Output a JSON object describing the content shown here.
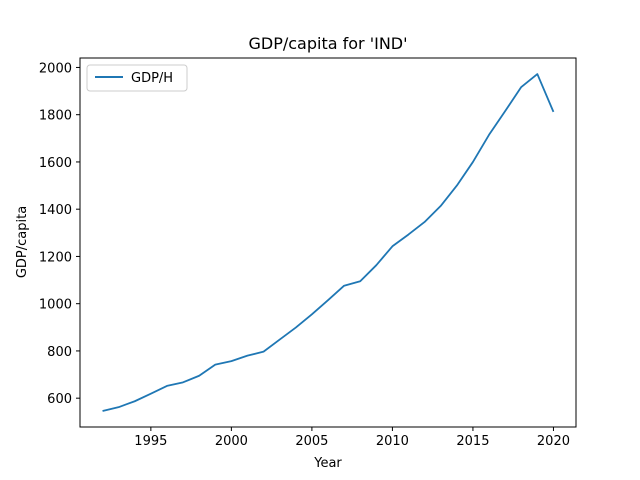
{
  "chart_data": {
    "type": "line",
    "title": "GDP/capita for 'IND'",
    "xlabel": "Year",
    "ylabel": "GDP/capita",
    "xlim": [
      1990.6,
      2021.4
    ],
    "ylim": [
      478,
      2040
    ],
    "xticks": [
      1995,
      2000,
      2005,
      2010,
      2015,
      2020
    ],
    "yticks": [
      600,
      800,
      1000,
      1200,
      1400,
      1600,
      1800,
      2000
    ],
    "grid": false,
    "legend": "top-left",
    "series": [
      {
        "name": "GDP/H",
        "color": "#1f77b4",
        "x": [
          1992,
          1993,
          1994,
          1995,
          1996,
          1997,
          1998,
          1999,
          2000,
          2001,
          2002,
          2003,
          2004,
          2005,
          2006,
          2007,
          2008,
          2009,
          2010,
          2011,
          2012,
          2013,
          2014,
          2015,
          2016,
          2017,
          2018,
          2019,
          2020
        ],
        "y": [
          546,
          562,
          587,
          619,
          652,
          667,
          695,
          742,
          757,
          780,
          797,
          848,
          899,
          955,
          1015,
          1076,
          1095,
          1163,
          1243,
          1293,
          1346,
          1414,
          1500,
          1600,
          1715,
          1815,
          1917,
          1972,
          1812
        ]
      }
    ]
  }
}
